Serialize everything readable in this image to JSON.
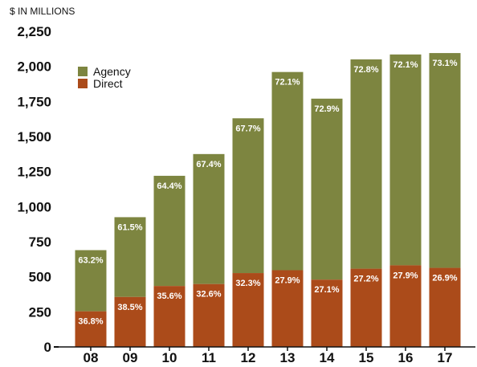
{
  "chart_data": {
    "type": "bar",
    "stacked": true,
    "unit_label": "$ IN MILLIONS",
    "categories": [
      "08",
      "09",
      "10",
      "11",
      "12",
      "13",
      "14",
      "15",
      "16",
      "17"
    ],
    "totals": [
      690,
      925,
      1220,
      1375,
      1630,
      1960,
      1770,
      2050,
      2085,
      2095
    ],
    "series": [
      {
        "name": "Direct",
        "color": "#ab4b1a",
        "pct_labels": [
          "36.8%",
          "38.5%",
          "35.6%",
          "32.6%",
          "32.3%",
          "27.9%",
          "27.1%",
          "27.2%",
          "27.9%",
          "26.9%"
        ]
      },
      {
        "name": "Agency",
        "color": "#7d8540",
        "pct_labels": [
          "63.2%",
          "61.5%",
          "64.4%",
          "67.4%",
          "67.7%",
          "72.1%",
          "72.9%",
          "72.8%",
          "72.1%",
          "73.1%"
        ]
      }
    ],
    "ylim": [
      0,
      2250
    ],
    "yticks": [
      "0",
      "250",
      "500",
      "750",
      "1,000",
      "1,250",
      "1,500",
      "1,750",
      "2,000",
      "2,250"
    ],
    "ytick_values": [
      0,
      250,
      500,
      750,
      1000,
      1250,
      1500,
      1750,
      2000,
      2250
    ],
    "legend": {
      "position": "top-left",
      "entries": [
        "Agency",
        "Direct"
      ]
    },
    "grid": false
  }
}
